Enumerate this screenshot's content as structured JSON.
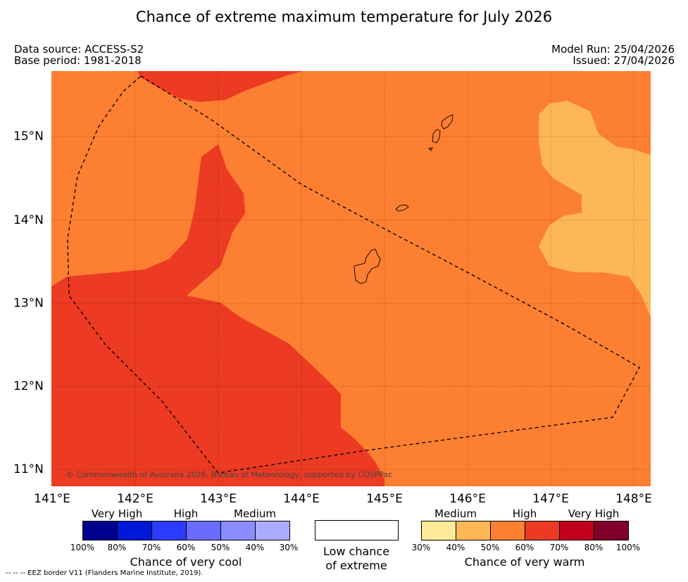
{
  "title": "Chance of extreme maximum temperature for July 2026",
  "meta": {
    "data_source": "Data source: ACCESS-S2",
    "base_period": "Base period: 1981-2018",
    "model_run": "Model Run: 25/04/2026",
    "issued": "Issued: 27/04/2026"
  },
  "map": {
    "lat_labels": [
      "15°N",
      "14°N",
      "13°N",
      "12°N",
      "11°N"
    ],
    "lon_labels": [
      "141°E",
      "142°E",
      "143°E",
      "144°E",
      "145°E",
      "146°E",
      "147°E",
      "148°E"
    ],
    "copyright": "© Commonwealth of Australia 2026, Bureau of Meteorology, supported by COSPPac",
    "colors": {
      "high_warm": "#fd7f31",
      "very_high_warm_70": "#ec3a23",
      "medium_warm_40": "#fdb755",
      "border": "#000000"
    }
  },
  "legend": {
    "cool": {
      "categories": [
        "Very High",
        "High",
        "Medium"
      ],
      "colors": [
        "#00008f",
        "#0019d9",
        "#2b3cff",
        "#6a6cff",
        "#8a8cff",
        "#aaacff"
      ],
      "ticks": [
        "100%",
        "80%",
        "70%",
        "60%",
        "50%",
        "40%",
        "30%"
      ],
      "caption": "Chance of very cool"
    },
    "low": {
      "line1": "Low chance",
      "line2": "of extreme"
    },
    "warm": {
      "categories": [
        "Medium",
        "High",
        "Very High"
      ],
      "colors": [
        "#feeb9a",
        "#fdb755",
        "#fd7f31",
        "#ec3a23",
        "#c2001e",
        "#80002a"
      ],
      "ticks": [
        "30%",
        "40%",
        "50%",
        "60%",
        "70%",
        "80%",
        "100%"
      ],
      "caption": "Chance of very warm"
    }
  },
  "footnote": "--  --  -- EEZ border V11 (Flanders Marine Institute, 2019)."
}
